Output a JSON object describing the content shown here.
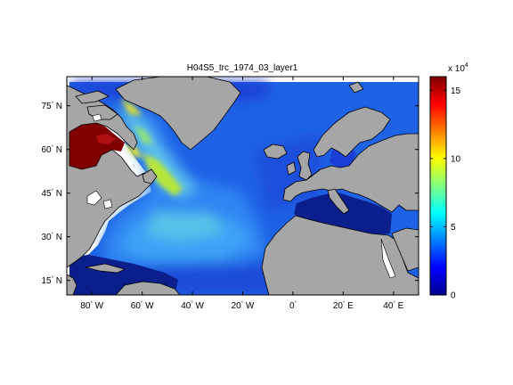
{
  "map": {
    "title": "H04S5_trc_1974_03_layer1",
    "lat_ticks": [
      {
        "value": 75,
        "deg": "75",
        "hemi": "N"
      },
      {
        "value": 60,
        "deg": "60",
        "hemi": "N"
      },
      {
        "value": 45,
        "deg": "45",
        "hemi": "N"
      },
      {
        "value": 30,
        "deg": "30",
        "hemi": "N"
      },
      {
        "value": 15,
        "deg": "15",
        "hemi": "N"
      }
    ],
    "lon_ticks": [
      {
        "value": -80,
        "deg": "80",
        "hemi": "W"
      },
      {
        "value": -60,
        "deg": "60",
        "hemi": "W"
      },
      {
        "value": -40,
        "deg": "40",
        "hemi": "W"
      },
      {
        "value": -20,
        "deg": "20",
        "hemi": "W"
      },
      {
        "value": 0,
        "deg": "0",
        "hemi": ""
      },
      {
        "value": 20,
        "deg": "20",
        "hemi": "E"
      },
      {
        "value": 40,
        "deg": "40",
        "hemi": "E"
      }
    ],
    "lon_range": [
      -90,
      50
    ],
    "lat_range": [
      10,
      85
    ],
    "land_color": "#a6a6a6",
    "missing_color": "#ffffff"
  },
  "colorbar": {
    "multiplier_base": "x 10",
    "multiplier_exp": "4",
    "range": [
      0,
      16
    ],
    "ticks": [
      {
        "value": 0,
        "label": "0"
      },
      {
        "value": 5,
        "label": "5"
      },
      {
        "value": 10,
        "label": "10"
      },
      {
        "value": 15,
        "label": "15"
      }
    ],
    "colormap": "jet"
  }
}
